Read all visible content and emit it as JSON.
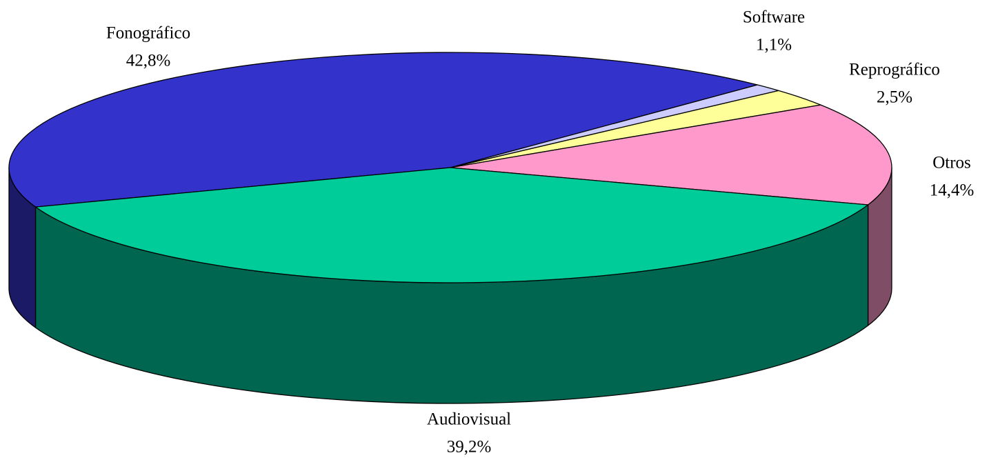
{
  "chart_data": {
    "type": "pie",
    "three_d": true,
    "categories": [
      "Fonográfico",
      "Software",
      "Reprográfico",
      "Otros",
      "Audiovisual"
    ],
    "values": [
      42.8,
      1.1,
      2.5,
      14.4,
      39.2
    ],
    "value_labels": [
      "42,8%",
      "1,1%",
      "2,5%",
      "14,4%",
      "39,2%"
    ],
    "colors": [
      "#3333cc",
      "#ccccff",
      "#ffff99",
      "#ff99cc",
      "#00cc99"
    ],
    "side_colors": [
      "#1a1a66",
      "#66667f",
      "#80804d",
      "#804d66",
      "#006650"
    ]
  }
}
